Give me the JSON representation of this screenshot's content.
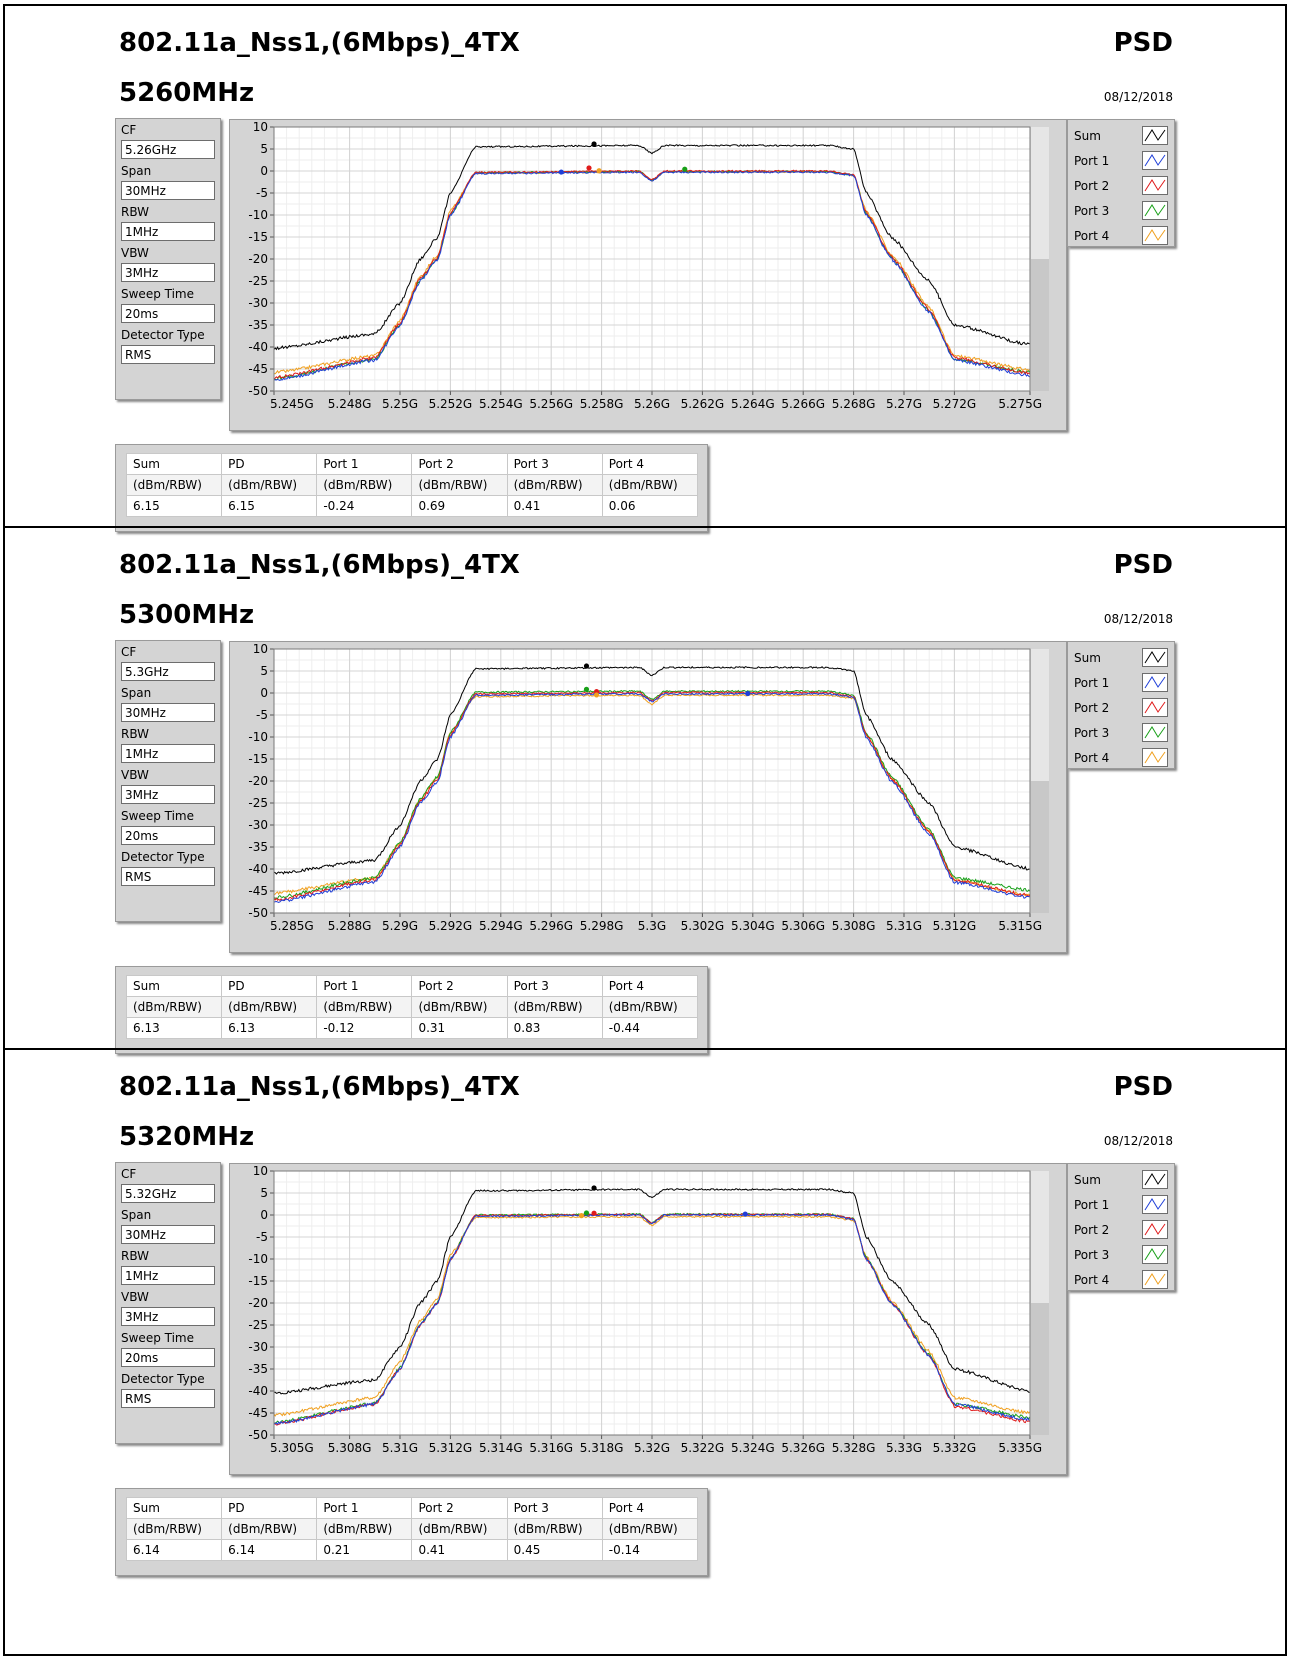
{
  "panels": [
    {
      "title": "802.11a_Nss1,(6Mbps)_4TX",
      "frequency": "5260MHz",
      "label": "PSD",
      "date": "08/12/2018",
      "settings": [
        {
          "label": "CF",
          "value": "5.26GHz"
        },
        {
          "label": "Span",
          "value": "30MHz"
        },
        {
          "label": "RBW",
          "value": "1MHz"
        },
        {
          "label": "VBW",
          "value": "3MHz"
        },
        {
          "label": "Sweep Time",
          "value": "20ms"
        },
        {
          "label": "Detector Type",
          "value": "RMS"
        }
      ],
      "legend": [
        "Sum",
        "Port 1",
        "Port 2",
        "Port 3",
        "Port 4"
      ],
      "results": {
        "headers": [
          "Sum",
          "PD",
          "Port 1",
          "Port 2",
          "Port 3",
          "Port 4"
        ],
        "units": [
          "(dBm/RBW)",
          "(dBm/RBW)",
          "(dBm/RBW)",
          "(dBm/RBW)",
          "(dBm/RBW)",
          "(dBm/RBW)"
        ],
        "values": [
          "6.15",
          "6.15",
          "-0.24",
          "0.69",
          "0.41",
          "0.06"
        ]
      }
    },
    {
      "title": "802.11a_Nss1,(6Mbps)_4TX",
      "frequency": "5300MHz",
      "label": "PSD",
      "date": "08/12/2018",
      "settings": [
        {
          "label": "CF",
          "value": "5.3GHz"
        },
        {
          "label": "Span",
          "value": "30MHz"
        },
        {
          "label": "RBW",
          "value": "1MHz"
        },
        {
          "label": "VBW",
          "value": "3MHz"
        },
        {
          "label": "Sweep Time",
          "value": "20ms"
        },
        {
          "label": "Detector Type",
          "value": "RMS"
        }
      ],
      "legend": [
        "Sum",
        "Port 1",
        "Port 2",
        "Port 3",
        "Port 4"
      ],
      "results": {
        "headers": [
          "Sum",
          "PD",
          "Port 1",
          "Port 2",
          "Port 3",
          "Port 4"
        ],
        "units": [
          "(dBm/RBW)",
          "(dBm/RBW)",
          "(dBm/RBW)",
          "(dBm/RBW)",
          "(dBm/RBW)",
          "(dBm/RBW)"
        ],
        "values": [
          "6.13",
          "6.13",
          "-0.12",
          "0.31",
          "0.83",
          "-0.44"
        ]
      }
    },
    {
      "title": "802.11a_Nss1,(6Mbps)_4TX",
      "frequency": "5320MHz",
      "label": "PSD",
      "date": "08/12/2018",
      "settings": [
        {
          "label": "CF",
          "value": "5.32GHz"
        },
        {
          "label": "Span",
          "value": "30MHz"
        },
        {
          "label": "RBW",
          "value": "1MHz"
        },
        {
          "label": "VBW",
          "value": "3MHz"
        },
        {
          "label": "Sweep Time",
          "value": "20ms"
        },
        {
          "label": "Detector Type",
          "value": "RMS"
        }
      ],
      "legend": [
        "Sum",
        "Port 1",
        "Port 2",
        "Port 3",
        "Port 4"
      ],
      "results": {
        "headers": [
          "Sum",
          "PD",
          "Port 1",
          "Port 2",
          "Port 3",
          "Port 4"
        ],
        "units": [
          "(dBm/RBW)",
          "(dBm/RBW)",
          "(dBm/RBW)",
          "(dBm/RBW)",
          "(dBm/RBW)",
          "(dBm/RBW)"
        ],
        "values": [
          "6.14",
          "6.14",
          "0.21",
          "0.41",
          "0.45",
          "-0.14"
        ]
      }
    }
  ],
  "chart_data": [
    {
      "type": "line",
      "xlim": [
        5.245,
        5.275
      ],
      "ylim": [
        -50,
        10
      ],
      "yticks": [
        10,
        5,
        0,
        -5,
        -10,
        -15,
        -20,
        -25,
        -30,
        -35,
        -40,
        -45,
        -50
      ],
      "xticks": [
        "5.245G",
        "5.248G",
        "5.25G",
        "5.252G",
        "5.254G",
        "5.256G",
        "5.258G",
        "5.26G",
        "5.262G",
        "5.264G",
        "5.266G",
        "5.268G",
        "5.27G",
        "5.272G",
        "5.275G"
      ],
      "xtick_values": [
        5.245,
        5.248,
        5.25,
        5.252,
        5.254,
        5.256,
        5.258,
        5.26,
        5.262,
        5.264,
        5.266,
        5.268,
        5.27,
        5.272,
        5.275
      ],
      "grid": true,
      "center": 5.26,
      "series": [
        {
          "name": "Sum",
          "color": "#000000",
          "offset": 6.0,
          "floor": -40.3,
          "x": [
            5.245,
            5.249,
            5.25,
            5.2508,
            5.2515,
            5.252,
            5.253,
            5.2595,
            5.26,
            5.2605,
            5.267,
            5.268,
            5.2685,
            5.2695,
            5.271,
            5.272,
            5.275
          ],
          "y": [
            -40.3,
            -37,
            -30,
            -20,
            -15,
            -5,
            5.5,
            5.8,
            4.0,
            5.8,
            5.8,
            5.0,
            -5,
            -15,
            -25,
            -35,
            -39.5
          ],
          "peak": [
            5.2577,
            6.15
          ]
        },
        {
          "name": "Port 1",
          "color": "#1f3fd8",
          "x": [
            5.245,
            5.249,
            5.25,
            5.2508,
            5.2515,
            5.252,
            5.253,
            5.2595,
            5.26,
            5.2605,
            5.267,
            5.268,
            5.2685,
            5.2695,
            5.271,
            5.272,
            5.275
          ],
          "y": [
            -47.5,
            -43,
            -35,
            -25,
            -20,
            -10,
            -0.6,
            -0.3,
            -2.3,
            -0.3,
            -0.3,
            -1,
            -10,
            -20,
            -32,
            -43,
            -46.5
          ],
          "peak": [
            5.2564,
            -0.24
          ]
        },
        {
          "name": "Port 2",
          "color": "#e01b1b",
          "x": [
            5.245,
            5.249,
            5.25,
            5.2508,
            5.2515,
            5.252,
            5.253,
            5.2595,
            5.26,
            5.2605,
            5.267,
            5.268,
            5.2685,
            5.2695,
            5.271,
            5.272,
            5.275
          ],
          "y": [
            -47,
            -42.5,
            -34.5,
            -24.5,
            -19.5,
            -9.5,
            -0.3,
            0.0,
            -2.0,
            0.0,
            0.0,
            -0.8,
            -9.5,
            -19.5,
            -31.5,
            -42.5,
            -46
          ],
          "peak": [
            5.2575,
            0.69
          ]
        },
        {
          "name": "Port 3",
          "color": "#18a018",
          "x": [
            5.245,
            5.249,
            5.25,
            5.2508,
            5.2515,
            5.252,
            5.253,
            5.2595,
            5.26,
            5.2605,
            5.267,
            5.268,
            5.2685,
            5.2695,
            5.271,
            5.272,
            5.275
          ],
          "y": [
            -47.2,
            -42.8,
            -34.8,
            -24.8,
            -19.8,
            -9.8,
            -0.4,
            -0.1,
            -2.1,
            -0.1,
            -0.1,
            -0.9,
            -9.8,
            -19.8,
            -31.8,
            -42.8,
            -45.8
          ],
          "peak": [
            5.2613,
            0.41
          ]
        },
        {
          "name": "Port 4",
          "color": "#f0a020",
          "x": [
            5.245,
            5.249,
            5.25,
            5.2508,
            5.2515,
            5.252,
            5.253,
            5.2595,
            5.26,
            5.2605,
            5.267,
            5.268,
            5.2685,
            5.2695,
            5.271,
            5.272,
            5.275
          ],
          "y": [
            -45.8,
            -42,
            -34,
            -24,
            -19,
            -9,
            -0.5,
            -0.2,
            -2.2,
            -0.2,
            -0.2,
            -1,
            -9,
            -19,
            -31,
            -42,
            -45.2
          ],
          "peak": [
            5.2579,
            0.06
          ]
        }
      ]
    },
    {
      "type": "line",
      "xlim": [
        5.285,
        5.315
      ],
      "ylim": [
        -50,
        10
      ],
      "yticks": [
        10,
        5,
        0,
        -5,
        -10,
        -15,
        -20,
        -25,
        -30,
        -35,
        -40,
        -45,
        -50
      ],
      "xticks": [
        "5.285G",
        "5.288G",
        "5.29G",
        "5.292G",
        "5.294G",
        "5.296G",
        "5.298G",
        "5.3G",
        "5.302G",
        "5.304G",
        "5.306G",
        "5.308G",
        "5.31G",
        "5.312G",
        "5.315G"
      ],
      "xtick_values": [
        5.285,
        5.288,
        5.29,
        5.292,
        5.294,
        5.296,
        5.298,
        5.3,
        5.302,
        5.304,
        5.306,
        5.308,
        5.31,
        5.312,
        5.315
      ],
      "grid": true,
      "center": 5.3,
      "series": [
        {
          "name": "Sum",
          "color": "#000000",
          "x": [
            5.285,
            5.289,
            5.29,
            5.2908,
            5.2915,
            5.292,
            5.293,
            5.2995,
            5.3,
            5.3005,
            5.307,
            5.308,
            5.3085,
            5.3095,
            5.311,
            5.312,
            5.315
          ],
          "y": [
            -41,
            -38,
            -30,
            -20,
            -15,
            -5,
            5.5,
            5.8,
            4.0,
            5.8,
            5.8,
            5.0,
            -5,
            -15,
            -25,
            -35,
            -40
          ],
          "peak": [
            5.2974,
            6.13
          ]
        },
        {
          "name": "Port 1",
          "color": "#1f3fd8",
          "x": [
            5.285,
            5.289,
            5.29,
            5.2908,
            5.2915,
            5.292,
            5.293,
            5.2995,
            5.3,
            5.3005,
            5.307,
            5.308,
            5.3085,
            5.3095,
            5.311,
            5.312,
            5.315
          ],
          "y": [
            -47.5,
            -43,
            -35,
            -25,
            -20,
            -10,
            -0.5,
            -0.2,
            -2.0,
            -0.2,
            -0.2,
            -1,
            -10,
            -20,
            -32,
            -43,
            -46.5
          ],
          "peak": [
            5.3038,
            -0.12
          ]
        },
        {
          "name": "Port 2",
          "color": "#e01b1b",
          "x": [
            5.285,
            5.289,
            5.29,
            5.2908,
            5.2915,
            5.292,
            5.293,
            5.2995,
            5.3,
            5.3005,
            5.307,
            5.308,
            5.3085,
            5.3095,
            5.311,
            5.312,
            5.315
          ],
          "y": [
            -47,
            -42.5,
            -34.5,
            -24.5,
            -19.5,
            -9.5,
            -0.2,
            0.1,
            -1.8,
            0.1,
            0.1,
            -0.8,
            -9.5,
            -19.5,
            -31.5,
            -42.5,
            -46
          ],
          "peak": [
            5.2978,
            0.31
          ]
        },
        {
          "name": "Port 3",
          "color": "#18a018",
          "x": [
            5.285,
            5.289,
            5.29,
            5.2908,
            5.2915,
            5.292,
            5.293,
            5.2995,
            5.3,
            5.3005,
            5.307,
            5.308,
            5.3085,
            5.3095,
            5.311,
            5.312,
            5.315
          ],
          "y": [
            -46.5,
            -42,
            -34,
            -24,
            -19,
            -9,
            0.2,
            0.4,
            -1.5,
            0.4,
            0.4,
            -0.5,
            -9,
            -19,
            -31,
            -42,
            -44.8
          ],
          "peak": [
            5.2974,
            0.83
          ]
        },
        {
          "name": "Port 4",
          "color": "#f0a020",
          "x": [
            5.285,
            5.289,
            5.29,
            5.2908,
            5.2915,
            5.292,
            5.293,
            5.2995,
            5.3,
            5.3005,
            5.307,
            5.308,
            5.3085,
            5.3095,
            5.311,
            5.312,
            5.315
          ],
          "y": [
            -45.5,
            -42,
            -34,
            -24,
            -19,
            -9,
            -0.8,
            -0.5,
            -2.6,
            -0.5,
            -0.5,
            -1.2,
            -9.5,
            -19.5,
            -31.5,
            -42.5,
            -46
          ],
          "peak": [
            5.2978,
            -0.44
          ]
        }
      ]
    },
    {
      "type": "line",
      "xlim": [
        5.305,
        5.335
      ],
      "ylim": [
        -50,
        10
      ],
      "yticks": [
        10,
        5,
        0,
        -5,
        -10,
        -15,
        -20,
        -25,
        -30,
        -35,
        -40,
        -45,
        -50
      ],
      "xticks": [
        "5.305G",
        "5.308G",
        "5.31G",
        "5.312G",
        "5.314G",
        "5.316G",
        "5.318G",
        "5.32G",
        "5.322G",
        "5.324G",
        "5.326G",
        "5.328G",
        "5.33G",
        "5.332G",
        "5.335G"
      ],
      "xtick_values": [
        5.305,
        5.308,
        5.31,
        5.312,
        5.314,
        5.316,
        5.318,
        5.32,
        5.322,
        5.324,
        5.326,
        5.328,
        5.33,
        5.332,
        5.335
      ],
      "grid": true,
      "center": 5.32,
      "series": [
        {
          "name": "Sum",
          "color": "#000000",
          "x": [
            5.305,
            5.309,
            5.31,
            5.3108,
            5.3115,
            5.312,
            5.313,
            5.3195,
            5.32,
            5.3205,
            5.327,
            5.328,
            5.3285,
            5.3295,
            5.331,
            5.332,
            5.335
          ],
          "y": [
            -40.5,
            -37.5,
            -30,
            -20,
            -15,
            -5,
            5.5,
            5.8,
            4.0,
            5.8,
            5.8,
            5.0,
            -5,
            -15,
            -25,
            -35,
            -40
          ],
          "peak": [
            5.3177,
            6.14
          ]
        },
        {
          "name": "Port 1",
          "color": "#1f3fd8",
          "x": [
            5.305,
            5.309,
            5.31,
            5.3108,
            5.3115,
            5.312,
            5.313,
            5.3195,
            5.32,
            5.3205,
            5.327,
            5.328,
            5.3285,
            5.3295,
            5.331,
            5.332,
            5.335
          ],
          "y": [
            -47.5,
            -43,
            -35,
            -25,
            -20,
            -10,
            -0.3,
            0.0,
            -2.0,
            0.0,
            0.0,
            -1,
            -10,
            -20,
            -32,
            -43,
            -46.5
          ],
          "peak": [
            5.3237,
            0.21
          ]
        },
        {
          "name": "Port 2",
          "color": "#e01b1b",
          "x": [
            5.305,
            5.309,
            5.31,
            5.3108,
            5.3115,
            5.312,
            5.313,
            5.3195,
            5.32,
            5.3205,
            5.327,
            5.328,
            5.3285,
            5.3295,
            5.331,
            5.332,
            5.335
          ],
          "y": [
            -47.5,
            -43,
            -35,
            -25,
            -20,
            -10,
            -0.1,
            0.1,
            -1.9,
            0.1,
            0.1,
            -0.8,
            -10,
            -20,
            -32,
            -43.5,
            -47
          ],
          "peak": [
            5.3177,
            0.41
          ]
        },
        {
          "name": "Port 3",
          "color": "#18a018",
          "x": [
            5.305,
            5.309,
            5.31,
            5.3108,
            5.3115,
            5.312,
            5.313,
            5.3195,
            5.32,
            5.3205,
            5.327,
            5.328,
            5.3285,
            5.3295,
            5.331,
            5.332,
            5.335
          ],
          "y": [
            -47.2,
            -42.8,
            -34.8,
            -24.8,
            -19.8,
            -9.8,
            0.0,
            0.2,
            -1.8,
            0.2,
            0.2,
            -0.8,
            -9.8,
            -19.8,
            -31.8,
            -43,
            -46
          ],
          "peak": [
            5.3174,
            0.45
          ]
        },
        {
          "name": "Port 4",
          "color": "#f0a020",
          "x": [
            5.305,
            5.309,
            5.31,
            5.3108,
            5.3115,
            5.312,
            5.313,
            5.3195,
            5.32,
            5.3205,
            5.327,
            5.328,
            5.3285,
            5.3295,
            5.331,
            5.332,
            5.335
          ],
          "y": [
            -45.5,
            -41.5,
            -33.5,
            -24,
            -19,
            -9,
            -0.6,
            -0.4,
            -2.4,
            -0.4,
            -0.4,
            -1.2,
            -9.5,
            -19.5,
            -31,
            -41.5,
            -45
          ],
          "peak": [
            5.3172,
            -0.14
          ]
        }
      ]
    }
  ]
}
